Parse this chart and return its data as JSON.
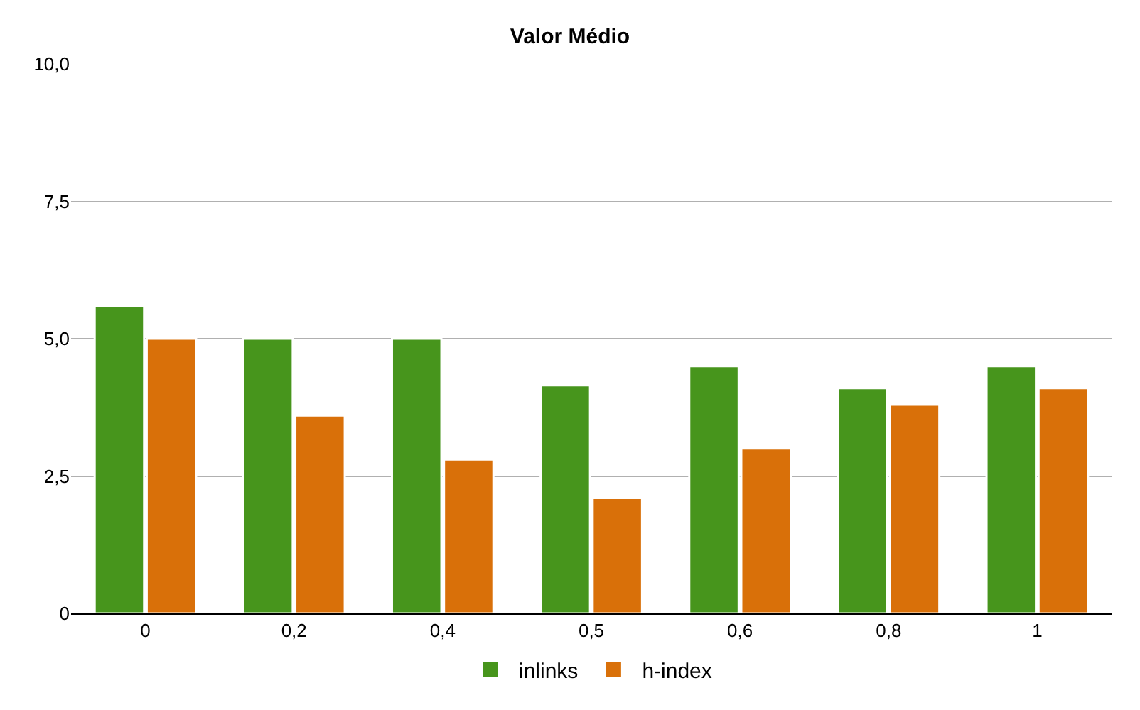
{
  "chart_data": {
    "type": "bar",
    "title": "Valor Médio",
    "categories": [
      "0",
      "0,2",
      "0,4",
      "0,5",
      "0,6",
      "0,8",
      "1"
    ],
    "series": [
      {
        "name": "inlinks",
        "color": "#47951c",
        "values": [
          5.6,
          5.0,
          5.0,
          4.15,
          4.5,
          4.1,
          4.5
        ]
      },
      {
        "name": "h-index",
        "color": "#d97009",
        "values": [
          5.0,
          3.6,
          2.8,
          2.1,
          3.0,
          3.8,
          4.1
        ]
      }
    ],
    "ylim": [
      0,
      10
    ],
    "yticks": [
      {
        "value": 0,
        "label": "0"
      },
      {
        "value": 2.5,
        "label": "2,5"
      },
      {
        "value": 5,
        "label": "5,0"
      },
      {
        "value": 7.5,
        "label": "7,5"
      },
      {
        "value": 10,
        "label": "10,0"
      }
    ],
    "grid": "y",
    "legend": "bottom"
  }
}
